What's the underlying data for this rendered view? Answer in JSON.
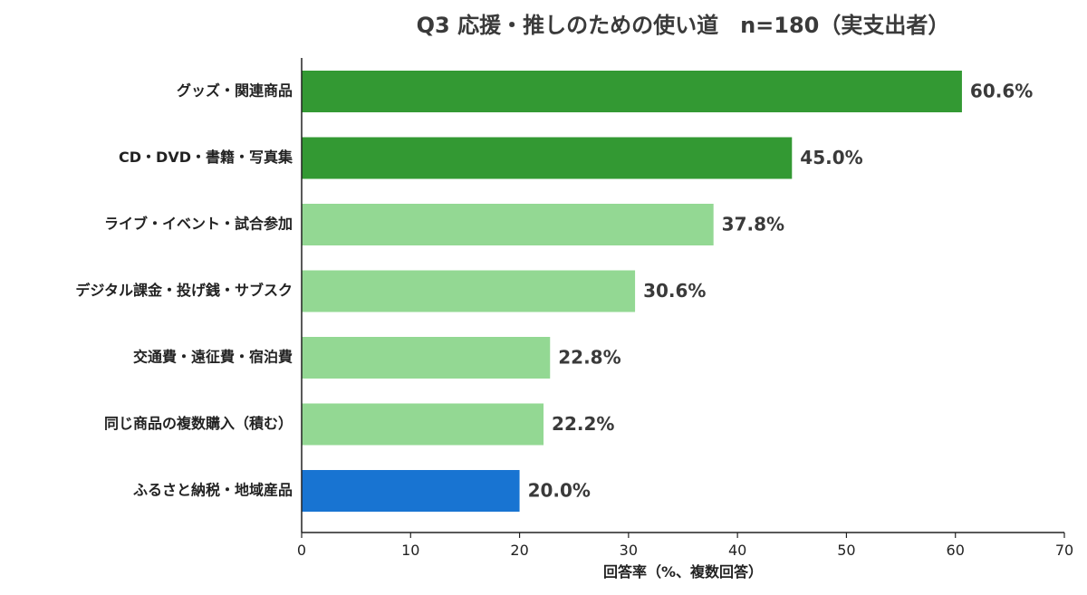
{
  "chart_data": {
    "type": "bar",
    "orientation": "horizontal",
    "title": "Q3 応援・推しのための使い道　n=180（実支出者）",
    "xlabel": "回答率（%、複数回答）",
    "ylabel": "",
    "xlim": [
      0,
      70
    ],
    "xticks": [
      0,
      10,
      20,
      30,
      40,
      50,
      60,
      70
    ],
    "grid": false,
    "categories": [
      "グッズ・関連商品",
      "CD・DVD・書籍・写真集",
      "ライブ・イベント・試合参加",
      "デジタル課金・投げ銭・サブスク",
      "交通費・遠征費・宿泊費",
      "同じ商品の複数購入（積む）",
      "ふるさと納税・地域産品"
    ],
    "values": [
      60.6,
      45.0,
      37.8,
      30.6,
      22.8,
      22.2,
      20.0
    ],
    "value_labels": [
      "60.6%",
      "45.0%",
      "37.8%",
      "30.6%",
      "22.8%",
      "22.2%",
      "20.0%"
    ],
    "bar_colors": [
      "#339933",
      "#339933",
      "#93d893",
      "#93d893",
      "#93d893",
      "#93d893",
      "#1874d2"
    ]
  },
  "colors": {
    "dark_green": "#339933",
    "light_green": "#93d893",
    "blue": "#1874d2",
    "axis": "#222222"
  }
}
